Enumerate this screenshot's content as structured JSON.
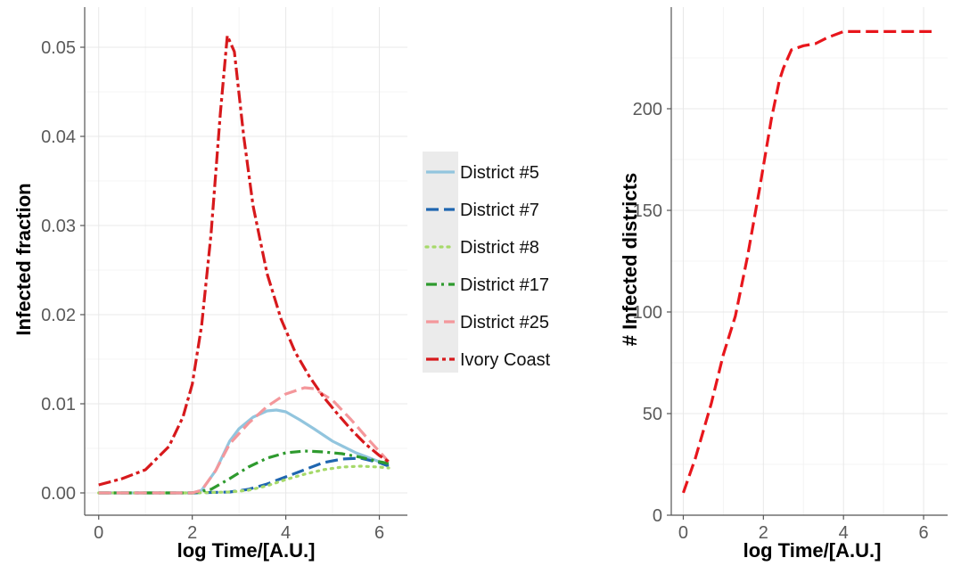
{
  "chart_data": [
    {
      "type": "line",
      "xlabel": "log Time/[A.U.]",
      "ylabel": "Infected fraction",
      "xlim": [
        -0.3,
        6.6
      ],
      "ylim": [
        -0.0025,
        0.0545
      ],
      "x_ticks": [
        0,
        2,
        4,
        6
      ],
      "x_tick_labels": [
        "0",
        "2",
        "4",
        "6"
      ],
      "y_ticks": [
        0,
        0.01,
        0.02,
        0.03,
        0.04,
        0.05
      ],
      "y_tick_labels": [
        "0.00",
        "0.01",
        "0.02",
        "0.03",
        "0.04",
        "0.05"
      ],
      "grid": true,
      "legend_position": "right",
      "series": [
        {
          "name": "District #5",
          "color": "#92c5de",
          "dash": "solid",
          "x": [
            0,
            1,
            2,
            2.2,
            2.5,
            2.8,
            3.0,
            3.3,
            3.6,
            3.8,
            4.0,
            4.3,
            4.6,
            5.0,
            5.5,
            6.0,
            6.2
          ],
          "y": [
            0,
            0,
            0,
            0.0003,
            0.0025,
            0.0058,
            0.0072,
            0.0085,
            0.0092,
            0.0093,
            0.0091,
            0.0082,
            0.0072,
            0.0058,
            0.0045,
            0.0035,
            0.0032
          ]
        },
        {
          "name": "District #7",
          "color": "#1f66b0",
          "dash": "longdash",
          "x": [
            0,
            1,
            2,
            2.8,
            3.2,
            3.6,
            4.0,
            4.4,
            4.8,
            5.2,
            5.6,
            6.0,
            6.2
          ],
          "y": [
            0,
            0,
            0,
            0.0001,
            0.0004,
            0.001,
            0.0018,
            0.0026,
            0.0034,
            0.0038,
            0.0039,
            0.0034,
            0.003
          ]
        },
        {
          "name": "District #8",
          "color": "#a6d96a",
          "dash": "dotted",
          "x": [
            0,
            1,
            2,
            2.8,
            3.2,
            3.6,
            4.0,
            4.4,
            4.8,
            5.2,
            5.6,
            6.0,
            6.2
          ],
          "y": [
            0,
            0,
            0,
            0.0001,
            0.0003,
            0.0008,
            0.0015,
            0.0021,
            0.0026,
            0.0029,
            0.003,
            0.0029,
            0.0028
          ]
        },
        {
          "name": "District #17",
          "color": "#2e9a2e",
          "dash": "dotdash",
          "x": [
            0,
            1,
            2,
            2.4,
            2.8,
            3.2,
            3.6,
            4.0,
            4.4,
            4.8,
            5.2,
            5.6,
            6.0,
            6.2
          ],
          "y": [
            0,
            0,
            0,
            0.0004,
            0.0016,
            0.0029,
            0.0039,
            0.0045,
            0.0047,
            0.0046,
            0.0044,
            0.004,
            0.0035,
            0.0033
          ]
        },
        {
          "name": "District #25",
          "color": "#f4979b",
          "dash": "longdash",
          "x": [
            0,
            1,
            2,
            2.2,
            2.5,
            2.8,
            3.2,
            3.6,
            4.0,
            4.4,
            4.6,
            5.0,
            5.4,
            5.8,
            6.2
          ],
          "y": [
            0,
            0,
            0,
            0.0003,
            0.0025,
            0.0055,
            0.0078,
            0.0097,
            0.0111,
            0.0118,
            0.0117,
            0.0104,
            0.0082,
            0.0058,
            0.0035
          ]
        },
        {
          "name": "Ivory Coast",
          "color": "#d7191c",
          "dash": "twodash",
          "x": [
            0,
            0.5,
            1.0,
            1.5,
            1.8,
            2.0,
            2.2,
            2.4,
            2.6,
            2.75,
            2.9,
            3.1,
            3.3,
            3.6,
            3.9,
            4.2,
            4.5,
            4.8,
            5.1,
            5.4,
            5.7,
            6.0,
            6.2
          ],
          "y": [
            0.0009,
            0.0016,
            0.0026,
            0.0052,
            0.0085,
            0.0122,
            0.0188,
            0.029,
            0.0425,
            0.0513,
            0.0495,
            0.04,
            0.0322,
            0.0246,
            0.0195,
            0.0158,
            0.0131,
            0.0108,
            0.0089,
            0.0071,
            0.0055,
            0.0042,
            0.0035
          ]
        }
      ]
    },
    {
      "type": "line",
      "xlabel": "log Time/[A.U.]",
      "ylabel": "# Infected districts",
      "xlim": [
        -0.3,
        6.6
      ],
      "ylim": [
        0,
        250
      ],
      "x_ticks": [
        0,
        2,
        4,
        6
      ],
      "x_tick_labels": [
        "0",
        "2",
        "4",
        "6"
      ],
      "y_ticks": [
        0,
        50,
        100,
        150,
        200
      ],
      "y_tick_labels": [
        "0",
        "50",
        "100",
        "150",
        "200"
      ],
      "grid": true,
      "legend_position": "none",
      "series": [
        {
          "color": "#e8161c",
          "dash": "longdash",
          "x": [
            0,
            0.3,
            0.7,
            1.0,
            1.3,
            1.6,
            1.9,
            2.2,
            2.4,
            2.5,
            2.7,
            3.0,
            3.3,
            3.6,
            4.0,
            4.5,
            5.0,
            5.5,
            6.2
          ],
          "y": [
            11,
            28,
            55,
            79,
            98,
            127,
            160,
            195,
            214,
            220,
            229,
            231,
            232,
            235,
            238,
            238,
            238,
            238,
            238
          ]
        }
      ]
    }
  ]
}
